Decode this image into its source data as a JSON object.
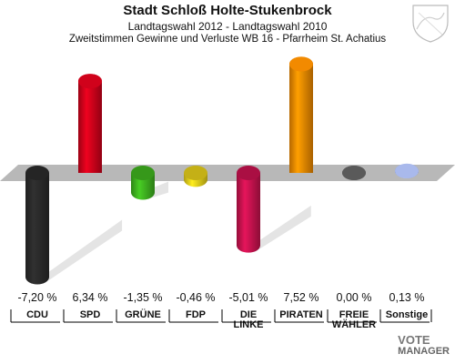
{
  "chart_data": {
    "type": "bar",
    "title": "Stadt Schloß Holte-Stukenbrock",
    "subtitle1": "Landtagswahl 2012 - Landtagswahl 2010",
    "subtitle2": "Zweitstimmen Gewinne und Verluste WB 16 - Pfarrheim St. Achatius",
    "categories": [
      {
        "label": "CDU",
        "label2": ""
      },
      {
        "label": "SPD",
        "label2": ""
      },
      {
        "label": "GRÜNE",
        "label2": ""
      },
      {
        "label": "FDP",
        "label2": ""
      },
      {
        "label": "DIE",
        "label2": "LINKE"
      },
      {
        "label": "PIRATEN",
        "label2": ""
      },
      {
        "label": "FREIE",
        "label2": "WÄHLER"
      },
      {
        "label": "Sonstige",
        "label2": ""
      }
    ],
    "values": [
      -7.2,
      6.34,
      -1.35,
      -0.46,
      -5.01,
      7.52,
      0.0,
      0.13
    ],
    "value_labels": [
      "-7,20 %",
      "6,34 %",
      "-1,35 %",
      "-0,46 %",
      "-5,01 %",
      "7,52 %",
      "0,00 %",
      "0,13 %"
    ],
    "colors": [
      "#2b2b2b",
      "#d0021b",
      "#3fb31f",
      "#e6cf1a",
      "#c8124f",
      "#f28a00",
      "#5a5a5a",
      "#a9b9ec"
    ],
    "ylim": [
      -8,
      8
    ]
  },
  "brand": {
    "line1": "VOTE",
    "line2": "MANAGER"
  }
}
